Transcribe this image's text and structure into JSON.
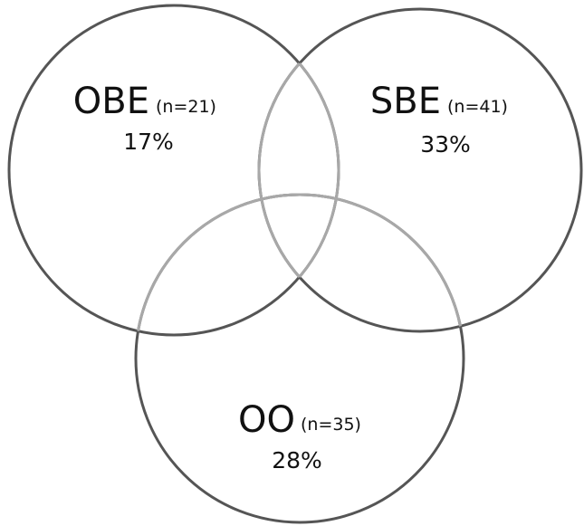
{
  "sets": [
    {
      "id": "obe",
      "name": "OBE",
      "n_label": "(n=21)",
      "percent": "17%"
    },
    {
      "id": "sbe",
      "name": "SBE",
      "n_label": "(n=41)",
      "percent": "33%"
    },
    {
      "id": "oo",
      "name": "OO",
      "n_label": "(n=35)",
      "percent": "28%"
    }
  ],
  "colors": {
    "outline_dark": "#555555",
    "outline_light": "#a8a8a8",
    "text": "#111111",
    "background": "#ffffff"
  }
}
